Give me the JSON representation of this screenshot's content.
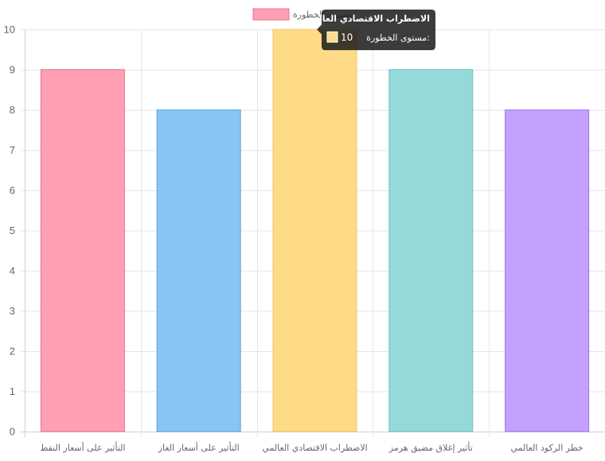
{
  "chart_data": {
    "type": "bar",
    "categories": [
      "التأثير على أسعار النفط",
      "التأثير على أسعار الغاز",
      "الاضطراب الاقتصادي العالمي",
      "تأثير إغلاق مضيق هرمز",
      "خطر الركود العالمي"
    ],
    "series": [
      {
        "name": "مستوى الخطورة",
        "values": [
          9,
          8,
          10,
          9,
          8
        ]
      }
    ],
    "ylim": [
      0,
      10
    ],
    "yticks": [
      0,
      1,
      2,
      3,
      4,
      5,
      6,
      7,
      8,
      9,
      10
    ],
    "grid": true,
    "legend_position": "top",
    "colors": {
      "fill": [
        "#ff9fb3",
        "#87c5f3",
        "#ffdb87",
        "#95d9d9",
        "#c2a1ff"
      ],
      "stroke": [
        "#e8728c",
        "#5aa6de",
        "#f2c55c",
        "#6cc6c6",
        "#9f72ee"
      ],
      "grid": "#e6e6e6"
    }
  },
  "tooltip": {
    "title": "الاضطراب الاقتصادي العالمي",
    "label": "مستوى الخطورة:",
    "value": "10"
  }
}
